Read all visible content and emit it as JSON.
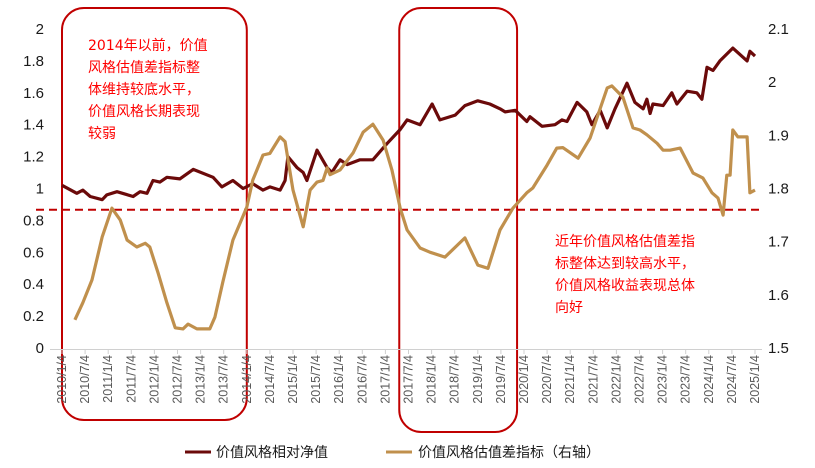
{
  "chart_data": {
    "type": "line",
    "title": "",
    "xlabel": "",
    "ylabel": "",
    "xlim": [
      2010.0,
      2025.05
    ],
    "ylim": [
      0,
      2
    ],
    "y2lim": [
      1.5,
      2.1
    ],
    "grid": false,
    "legend_position": "bottom",
    "y_ticks": [
      "0",
      "0.2",
      "0.4",
      "0.6",
      "0.8",
      "1",
      "1.2",
      "1.4",
      "1.6",
      "1.8",
      "2"
    ],
    "y2_ticks": [
      "1.5",
      "1.6",
      "1.7",
      "1.8",
      "1.9",
      "2",
      "2.1"
    ],
    "x_ticks": [
      "2010/1/4",
      "2010/7/4",
      "2011/1/4",
      "2011/7/4",
      "2012/1/4",
      "2012/7/4",
      "2013/1/4",
      "2013/7/4",
      "2014/1/4",
      "2014/7/4",
      "2015/1/4",
      "2015/7/4",
      "2016/1/4",
      "2016/7/4",
      "2017/1/4",
      "2017/7/4",
      "2018/1/4",
      "2018/7/4",
      "2019/1/4",
      "2019/7/4",
      "2020/1/4",
      "2020/7/4",
      "2021/1/4",
      "2021/7/4",
      "2022/1/4",
      "2022/7/4",
      "2023/1/4",
      "2023/7/4",
      "2024/1/4",
      "2024/7/4",
      "2025/1/4"
    ],
    "reference_line": {
      "axis": "right",
      "value": 1.76,
      "color": "#c00000"
    },
    "highlight_ranges": [
      [
        2010.0,
        2014.0
      ],
      [
        2017.3,
        2019.85
      ]
    ],
    "series": [
      {
        "name": "价值风格相对净值",
        "axis": "left",
        "color": "#6b0a0a",
        "x": [
          2010.0,
          2010.32,
          2010.45,
          2010.61,
          2010.87,
          2010.97,
          2011.19,
          2011.54,
          2011.69,
          2011.84,
          2011.97,
          2012.12,
          2012.27,
          2012.55,
          2012.84,
          2013.27,
          2013.46,
          2013.7,
          2013.92,
          2014.13,
          2014.35,
          2014.5,
          2014.72,
          2014.83,
          2014.89,
          2015.09,
          2015.22,
          2015.3,
          2015.52,
          2015.74,
          2015.84,
          2016.02,
          2016.17,
          2016.45,
          2016.73,
          2017.03,
          2017.32,
          2017.47,
          2017.75,
          2018.01,
          2018.18,
          2018.51,
          2018.72,
          2019.0,
          2019.26,
          2019.48,
          2019.59,
          2019.81,
          2020.06,
          2020.13,
          2020.39,
          2020.67,
          2020.82,
          2020.93,
          2021.15,
          2021.36,
          2021.47,
          2021.65,
          2021.8,
          2021.97,
          2022.23,
          2022.4,
          2022.58,
          2022.66,
          2022.73,
          2022.79,
          2023.01,
          2023.2,
          2023.31,
          2023.53,
          2023.74,
          2023.85,
          2023.96,
          2024.09,
          2024.24,
          2024.52,
          2024.83,
          2024.89,
          2025.0
        ],
        "y": [
          1.02,
          0.97,
          0.99,
          0.95,
          0.93,
          0.96,
          0.98,
          0.95,
          0.98,
          0.97,
          1.05,
          1.04,
          1.07,
          1.06,
          1.12,
          1.07,
          1.01,
          1.05,
          1.0,
          1.03,
          0.99,
          1.01,
          0.99,
          1.05,
          1.2,
          1.13,
          1.1,
          1.05,
          1.24,
          1.13,
          1.1,
          1.18,
          1.15,
          1.18,
          1.18,
          1.28,
          1.37,
          1.43,
          1.4,
          1.53,
          1.43,
          1.46,
          1.52,
          1.55,
          1.53,
          1.5,
          1.48,
          1.49,
          1.42,
          1.45,
          1.39,
          1.4,
          1.43,
          1.42,
          1.54,
          1.48,
          1.4,
          1.49,
          1.38,
          1.5,
          1.66,
          1.54,
          1.5,
          1.56,
          1.47,
          1.53,
          1.52,
          1.6,
          1.53,
          1.61,
          1.6,
          1.56,
          1.76,
          1.74,
          1.8,
          1.88,
          1.8,
          1.86,
          1.83
        ]
      },
      {
        "name": "价值风格估值差指标（右轴）",
        "axis": "right",
        "color": "#c0904d",
        "x": [
          2010.28,
          2010.45,
          2010.65,
          2010.87,
          2011.08,
          2011.26,
          2011.41,
          2011.62,
          2011.8,
          2011.9,
          2012.08,
          2012.27,
          2012.45,
          2012.62,
          2012.73,
          2012.92,
          2013.2,
          2013.31,
          2013.48,
          2013.7,
          2014.0,
          2014.13,
          2014.35,
          2014.5,
          2014.72,
          2014.83,
          2015.0,
          2015.22,
          2015.37,
          2015.52,
          2015.65,
          2015.74,
          2015.8,
          2016.02,
          2016.3,
          2016.52,
          2016.73,
          2016.95,
          2017.14,
          2017.32,
          2017.47,
          2017.75,
          2017.97,
          2018.29,
          2018.72,
          2019.0,
          2019.22,
          2019.48,
          2019.76,
          2020.06,
          2020.19,
          2020.5,
          2020.71,
          2020.84,
          2021.17,
          2021.43,
          2021.8,
          2021.9,
          2022.14,
          2022.36,
          2022.51,
          2022.66,
          2022.88,
          2023.01,
          2023.16,
          2023.38,
          2023.66,
          2023.87,
          2024.07,
          2024.2,
          2024.31,
          2024.39,
          2024.46,
          2024.52,
          2024.63,
          2024.83,
          2024.89,
          2025.0
        ],
        "y": [
          1.553,
          1.585,
          1.628,
          1.709,
          1.763,
          1.741,
          1.703,
          1.69,
          1.697,
          1.69,
          1.641,
          1.585,
          1.538,
          1.536,
          1.545,
          1.536,
          1.536,
          1.558,
          1.624,
          1.703,
          1.765,
          1.816,
          1.863,
          1.866,
          1.897,
          1.888,
          1.797,
          1.728,
          1.797,
          1.812,
          1.815,
          1.839,
          1.826,
          1.835,
          1.867,
          1.906,
          1.921,
          1.891,
          1.835,
          1.763,
          1.722,
          1.688,
          1.68,
          1.671,
          1.707,
          1.656,
          1.65,
          1.722,
          1.763,
          1.792,
          1.801,
          1.844,
          1.876,
          1.877,
          1.857,
          1.895,
          1.989,
          1.993,
          1.972,
          1.914,
          1.91,
          1.901,
          1.885,
          1.872,
          1.872,
          1.876,
          1.829,
          1.82,
          1.792,
          1.782,
          1.75,
          1.825,
          1.825,
          1.91,
          1.897,
          1.897,
          1.792,
          1.797
        ]
      }
    ],
    "annotations": [
      {
        "lines": [
          "2014年以前，价值",
          "风格估值差指标整",
          "体维持较底水平，",
          "价值风格长期表现",
          "较弱"
        ]
      },
      {
        "lines": [
          "近年价值风格估值差指",
          "标整体达到较高水平，",
          "价值风格收益表现总体",
          "向好"
        ]
      }
    ]
  }
}
